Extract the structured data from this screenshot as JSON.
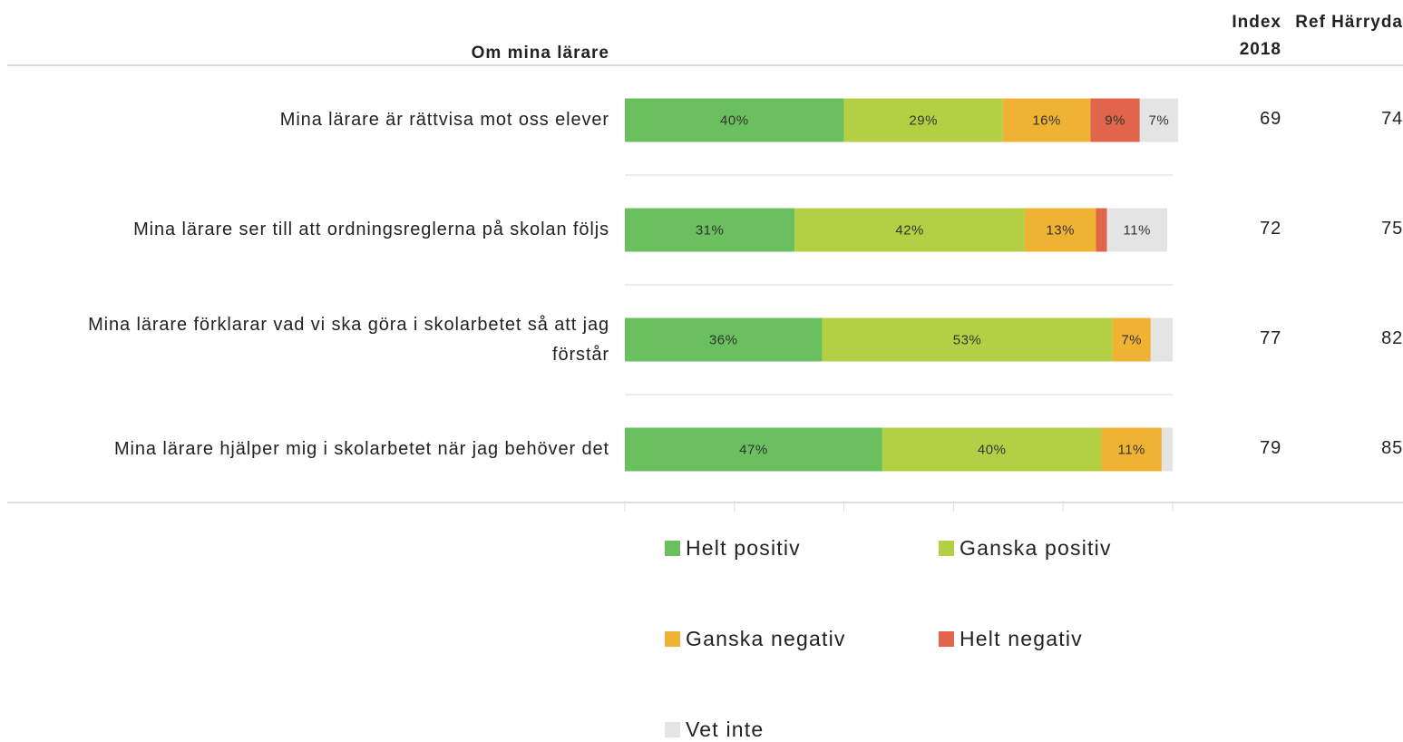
{
  "chart_data": {
    "type": "bar",
    "orientation": "horizontal",
    "stacked": true,
    "title": "Om mina lärare",
    "categories": [
      "Mina lärare är rättvisa mot oss elever",
      "Mina lärare ser till att ordningsreglerna på skolan följs",
      "Mina lärare förklarar vad vi ska göra i skolarbetet så att jag förstår",
      "Mina lärare hjälper mig i skolarbetet när jag behöver det"
    ],
    "series": [
      {
        "name": "Helt positiv",
        "color": "#6abf5f",
        "values": [
          40,
          31,
          36,
          47
        ],
        "value_labels": [
          "40%",
          "31%",
          "36%",
          "47%"
        ]
      },
      {
        "name": "Ganska positiv",
        "color": "#b3d044",
        "values": [
          29,
          42,
          53,
          40
        ],
        "value_labels": [
          "29%",
          "42%",
          "53%",
          "40%"
        ]
      },
      {
        "name": "Ganska negativ",
        "color": "#f0b232",
        "values": [
          16,
          13,
          7,
          11
        ],
        "value_labels": [
          "16%",
          "13%",
          "7%",
          "11%"
        ]
      },
      {
        "name": "Helt negativ",
        "color": "#e0654a",
        "values": [
          9,
          2,
          0,
          0
        ],
        "value_labels": [
          "9%",
          null,
          null,
          null
        ]
      },
      {
        "name": "Vet inte",
        "color": "#e4e4e4",
        "values": [
          7,
          11,
          4,
          2
        ],
        "value_labels": [
          "7%",
          "11%",
          null,
          null
        ]
      }
    ],
    "xlim": [
      0,
      100
    ],
    "xticks": [
      0,
      20,
      40,
      60,
      80,
      100
    ],
    "columns": [
      {
        "header": "Index 2018",
        "values": [
          69,
          72,
          77,
          79
        ]
      },
      {
        "header": "Ref Härryda",
        "values": [
          74,
          75,
          82,
          85
        ]
      }
    ]
  }
}
